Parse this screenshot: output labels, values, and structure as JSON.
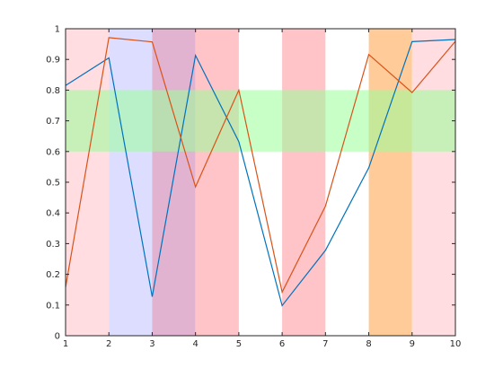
{
  "chart_data": {
    "type": "line",
    "title": "",
    "xlabel": "",
    "ylabel": "",
    "xlim": [
      1,
      10
    ],
    "ylim": [
      0,
      1
    ],
    "x_ticks": [
      1,
      2,
      3,
      4,
      5,
      6,
      7,
      8,
      9,
      10
    ],
    "y_ticks": [
      0,
      0.1,
      0.2,
      0.3,
      0.4,
      0.5,
      0.6,
      0.7,
      0.8,
      0.9,
      1
    ],
    "x_tick_labels": [
      "1",
      "2",
      "3",
      "4",
      "5",
      "6",
      "7",
      "8",
      "9",
      "10"
    ],
    "y_tick_labels": [
      "0",
      "0.1",
      "0.2",
      "0.3",
      "0.4",
      "0.5",
      "0.6",
      "0.7",
      "0.8",
      "0.9",
      "1"
    ],
    "grid": false,
    "x": [
      1,
      2,
      3,
      4,
      5,
      6,
      7,
      8,
      9,
      10
    ],
    "series": [
      {
        "color": "#0072BD",
        "values": [
          0.815,
          0.905,
          0.127,
          0.913,
          0.632,
          0.098,
          0.278,
          0.547,
          0.958,
          0.965
        ]
      },
      {
        "color": "#D95319",
        "values": [
          0.158,
          0.971,
          0.957,
          0.485,
          0.8,
          0.142,
          0.422,
          0.916,
          0.792,
          0.959
        ]
      }
    ],
    "vertical_bands": [
      {
        "x": [
          1,
          2
        ],
        "color": "#FFDDE1",
        "opacity": 1
      },
      {
        "x": [
          2,
          3
        ],
        "color": "#DDDDFF",
        "opacity": 1
      },
      {
        "x": [
          3,
          4
        ],
        "color": "#DDA6C8",
        "opacity": 0.85
      },
      {
        "x": [
          4,
          5
        ],
        "color": "#FFC4C8",
        "opacity": 1
      },
      {
        "x": [
          6,
          7
        ],
        "color": "#FFC4C8",
        "opacity": 1
      },
      {
        "x": [
          8,
          9
        ],
        "color": "#FFCC99",
        "opacity": 1
      },
      {
        "x": [
          9,
          10
        ],
        "color": "#FFDDE1",
        "opacity": 1
      }
    ],
    "horizontal_bands": [
      {
        "y": [
          0.6,
          0.8
        ],
        "color": "#99FF99",
        "opacity": 0.55
      }
    ]
  }
}
